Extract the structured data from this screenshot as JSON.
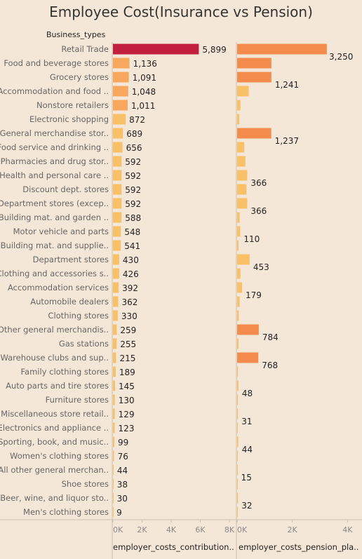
{
  "chart_data": {
    "type": "bar",
    "title": "Employee Cost(Insurance vs  Pension)",
    "row_header": "Business_types",
    "colors": {
      "highlight": "#c21f3e",
      "high": "#f38c4d",
      "mid": "#f7a85d",
      "low": "#f8c168",
      "background": "#f5e7d7"
    },
    "categories": [
      "Retail Trade",
      "Food and beverage stores",
      "Grocery stores",
      "Accommodation and food ..",
      "Nonstore retailers",
      "Electronic shopping",
      "General merchandise stor..",
      "Food service and drinking ..",
      "Pharmacies and drug stor..",
      "Health and personal care ..",
      "Discount dept. stores",
      "Department stores (excep..",
      "Building mat. and garden ..",
      "Motor vehicle and parts",
      "Building mat. and supplie..",
      "Department stores",
      "Clothing and accessories s..",
      "Accommodation services",
      "Automobile dealers",
      "Clothing stores",
      "Other general merchandis..",
      "Gas stations",
      "Warehouse clubs and sup..",
      "Family clothing stores",
      "Auto parts and tire stores",
      "Furniture stores",
      "Miscellaneous store retail..",
      "Electronics and appliance ..",
      "Sporting, book, and  music..",
      "Women's clothing stores",
      "All other general merchan..",
      "Shoe stores",
      "Beer, wine, and liquor sto..",
      "Men's clothing stores"
    ],
    "series": [
      {
        "name": "employer_costs_contribution..",
        "values": [
          5899,
          1136,
          1091,
          1048,
          1011,
          872,
          689,
          656,
          592,
          592,
          592,
          592,
          588,
          548,
          541,
          430,
          426,
          392,
          362,
          330,
          259,
          255,
          215,
          189,
          145,
          130,
          129,
          123,
          99,
          76,
          44,
          38,
          30,
          9
        ],
        "labels": [
          "5,899",
          "1,136",
          "1,091",
          "1,048",
          "1,011",
          "872",
          "689",
          "656",
          "592",
          "592",
          "592",
          "592",
          "588",
          "548",
          "541",
          "430",
          "426",
          "392",
          "362",
          "330",
          "259",
          "255",
          "215",
          "189",
          "145",
          "130",
          "129",
          "123",
          "99",
          "76",
          "44",
          "38",
          "30",
          "9"
        ],
        "xlim": [
          0,
          8000
        ],
        "ticks": [
          "0K",
          "2K",
          "4K",
          "6K",
          "8K"
        ]
      },
      {
        "name": "employer_costs_pension_pla..",
        "values": [
          3250,
          1241,
          1241,
          420,
          120,
          80,
          1237,
          260,
          300,
          366,
          340,
          366,
          90,
          110,
          50,
          453,
          120,
          179,
          90,
          60,
          784,
          50,
          768,
          30,
          48,
          30,
          31,
          25,
          44,
          20,
          15,
          15,
          32,
          10
        ],
        "labels": [
          "3,250",
          "",
          "1,241",
          "",
          "",
          "",
          "1,237",
          "",
          "",
          "366",
          "",
          "366",
          "",
          "110",
          "",
          "453",
          "",
          "179",
          "",
          "",
          "784",
          "",
          "768",
          "",
          "48",
          "",
          "31",
          "",
          "44",
          "",
          "15",
          "",
          "32",
          ""
        ],
        "xlim": [
          0,
          4500
        ],
        "ticks": [
          "0K",
          "2K",
          "4K"
        ]
      }
    ]
  }
}
